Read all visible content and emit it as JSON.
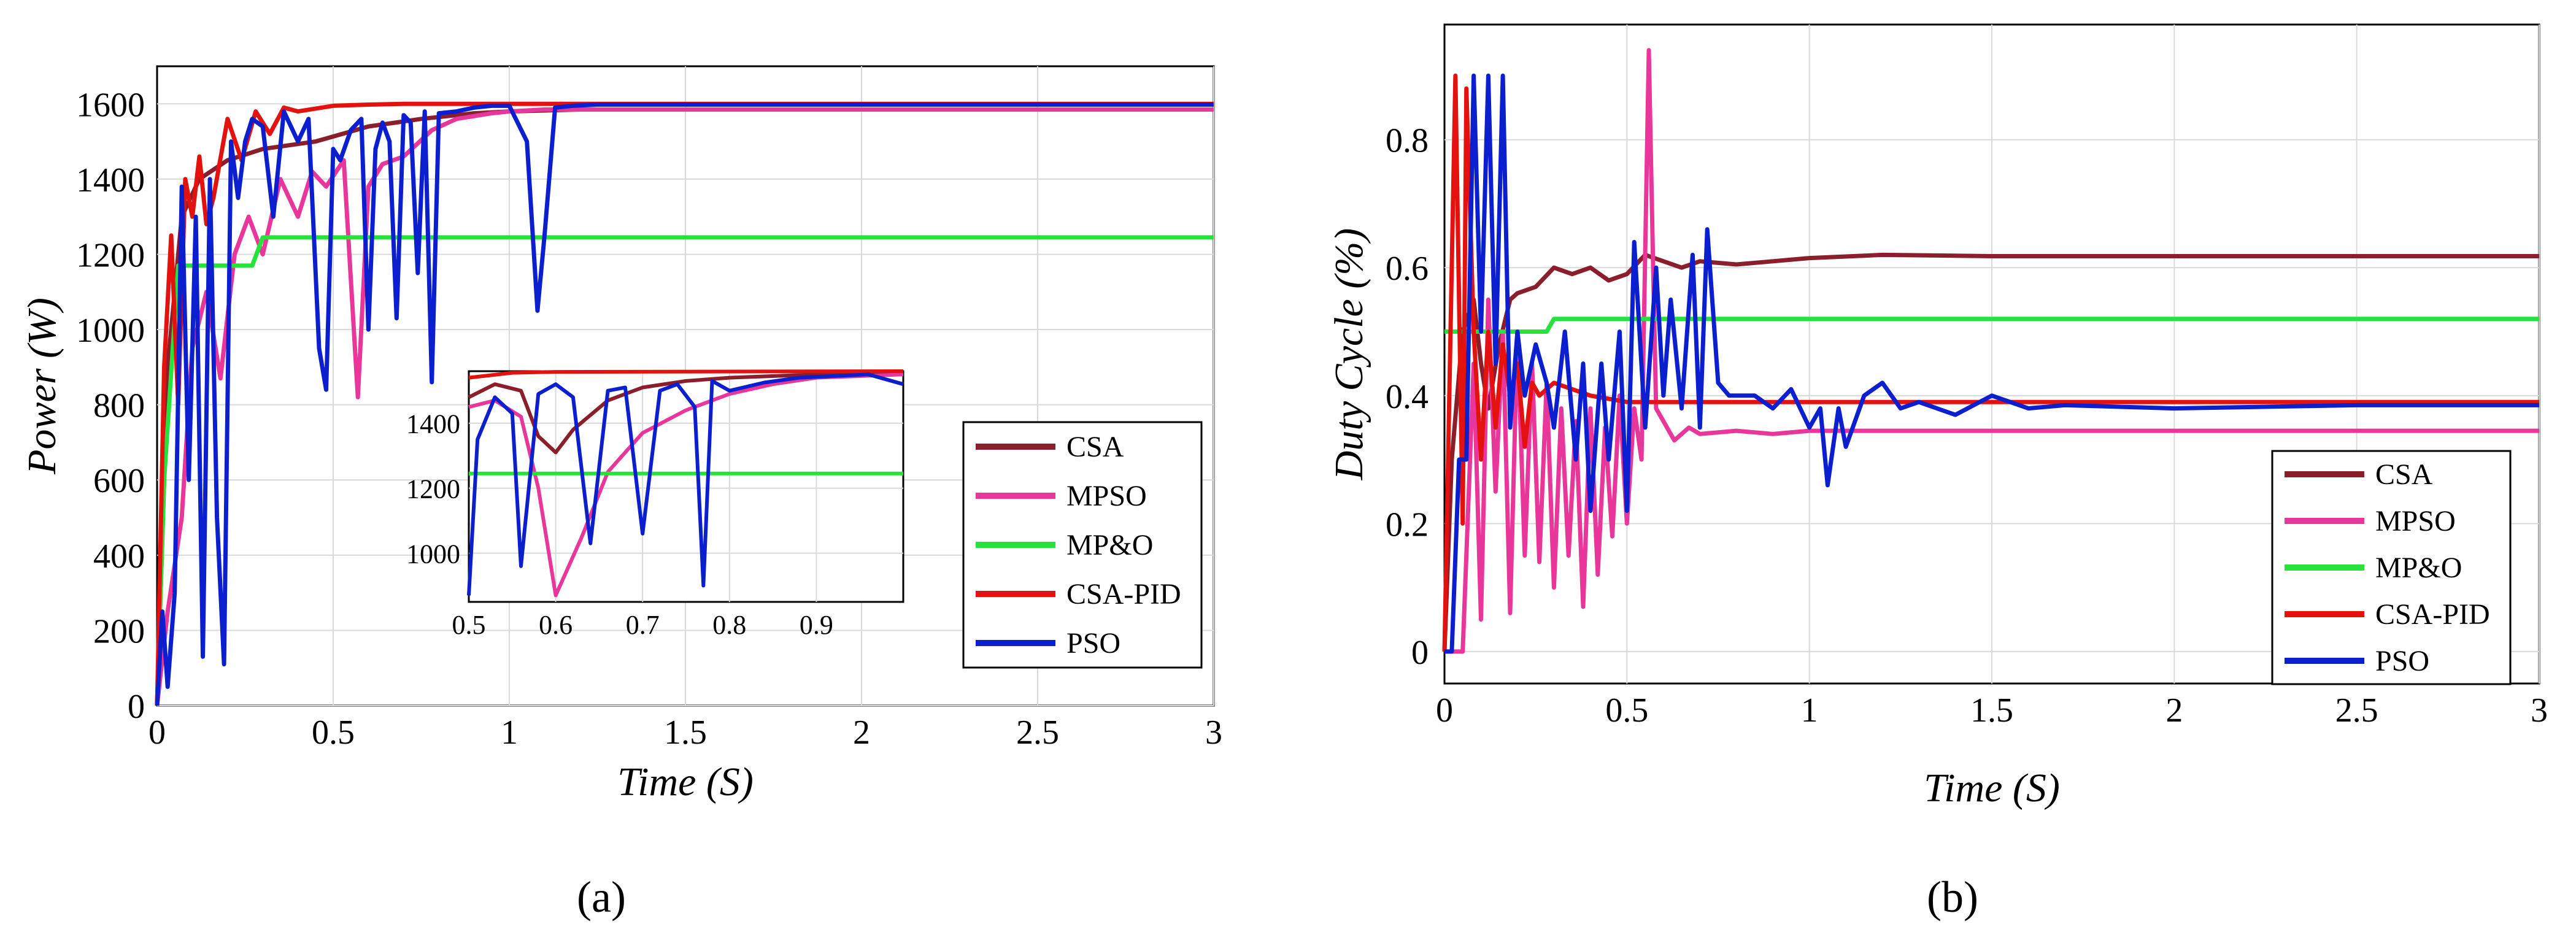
{
  "colors": {
    "CSA": "#8B1E2B",
    "MPSO": "#E8369A",
    "MP&O": "#27E23A",
    "CSA-PID": "#E3120F",
    "PSO": "#0B1FCF",
    "grid": "#d9d9d9",
    "axis": "#000000"
  },
  "chart_data": [
    {
      "id": "a",
      "type": "line",
      "caption": "(a)",
      "title": "",
      "xlabel": "Time (S)",
      "ylabel": "Power (W)",
      "xlim": [
        0,
        3
      ],
      "ylim": [
        0,
        1700
      ],
      "xticks": [
        0,
        0.5,
        1,
        1.5,
        2,
        2.5,
        3
      ],
      "xtick_labels": [
        "0",
        "0.5",
        "1",
        "1.5",
        "2",
        "2.5",
        "3"
      ],
      "yticks": [
        0,
        200,
        400,
        600,
        800,
        1000,
        1200,
        1400,
        1600
      ],
      "ytick_labels": [
        "0",
        "200",
        "400",
        "600",
        "800",
        "1000",
        "1200",
        "1400",
        "1600"
      ],
      "grid": true,
      "legend": {
        "position": "right",
        "entries": [
          "CSA",
          "MPSO",
          "MP&O",
          "CSA-PID",
          "PSO"
        ]
      },
      "series": [
        {
          "name": "CSA",
          "x": [
            0,
            0.03,
            0.07,
            0.12,
            0.2,
            0.3,
            0.45,
            0.6,
            0.75,
            0.85,
            0.9,
            1.0,
            1.2,
            3
          ],
          "y": [
            0,
            900,
            1300,
            1400,
            1450,
            1480,
            1500,
            1540,
            1560,
            1570,
            1575,
            1580,
            1585,
            1585
          ]
        },
        {
          "name": "MPSO",
          "x": [
            0,
            0.03,
            0.07,
            0.1,
            0.14,
            0.18,
            0.22,
            0.26,
            0.3,
            0.35,
            0.4,
            0.44,
            0.48,
            0.53,
            0.57,
            0.6,
            0.64,
            0.7,
            0.78,
            0.85,
            0.95,
            1.0,
            1.1,
            3
          ],
          "y": [
            0,
            250,
            500,
            950,
            1100,
            870,
            1200,
            1300,
            1200,
            1400,
            1300,
            1420,
            1380,
            1450,
            820,
            1380,
            1440,
            1460,
            1530,
            1560,
            1575,
            1580,
            1585,
            1585
          ]
        },
        {
          "name": "MP&O",
          "x": [
            0,
            0.02,
            0.06,
            0.1,
            0.15,
            0.2,
            0.27,
            0.3,
            0.33,
            3
          ],
          "y": [
            0,
            600,
            1170,
            1170,
            1170,
            1170,
            1170,
            1245,
            1245,
            1245
          ]
        },
        {
          "name": "CSA-PID",
          "x": [
            0,
            0.02,
            0.04,
            0.06,
            0.08,
            0.1,
            0.12,
            0.14,
            0.16,
            0.2,
            0.24,
            0.28,
            0.32,
            0.36,
            0.4,
            0.5,
            0.6,
            0.7,
            3
          ],
          "y": [
            0,
            900,
            1250,
            800,
            1400,
            1300,
            1460,
            1280,
            1350,
            1560,
            1450,
            1580,
            1520,
            1590,
            1580,
            1595,
            1598,
            1600,
            1600
          ]
        },
        {
          "name": "PSO",
          "x": [
            0,
            0.015,
            0.03,
            0.05,
            0.07,
            0.09,
            0.11,
            0.13,
            0.15,
            0.17,
            0.19,
            0.21,
            0.23,
            0.25,
            0.27,
            0.3,
            0.33,
            0.36,
            0.4,
            0.43,
            0.46,
            0.48,
            0.5,
            0.52,
            0.55,
            0.58,
            0.6,
            0.62,
            0.64,
            0.66,
            0.68,
            0.7,
            0.72,
            0.74,
            0.76,
            0.78,
            0.8,
            0.85,
            0.9,
            0.95,
            1.0,
            1.05,
            1.08,
            1.1,
            1.13,
            1.18,
            1.25,
            1.35,
            1.5,
            3
          ],
          "y": [
            0,
            250,
            50,
            300,
            1380,
            600,
            1300,
            130,
            1400,
            500,
            110,
            1500,
            1350,
            1500,
            1560,
            1540,
            1300,
            1580,
            1500,
            1560,
            950,
            840,
            1480,
            1450,
            1530,
            1560,
            1000,
            1480,
            1550,
            1500,
            1030,
            1570,
            1550,
            1150,
            1580,
            860,
            1575,
            1580,
            1590,
            1595,
            1595,
            1500,
            1050,
            1250,
            1590,
            1595,
            1598,
            1598,
            1598,
            1598
          ]
        }
      ],
      "inset": {
        "xlim": [
          0.5,
          1.0
        ],
        "ylim": [
          850,
          1560
        ],
        "xticks": [
          0.5,
          0.6,
          0.7,
          0.8,
          0.9
        ],
        "xtick_labels": [
          "0.5",
          "0.6",
          "0.7",
          "0.8",
          "0.9"
        ],
        "yticks": [
          1000,
          1200,
          1400
        ],
        "ytick_labels": [
          "1000",
          "1200",
          "1400"
        ],
        "grid": true,
        "series": [
          {
            "name": "CSA",
            "x": [
              0.5,
              0.53,
              0.56,
              0.58,
              0.6,
              0.62,
              0.66,
              0.7,
              0.75,
              0.8,
              0.9,
              1.0
            ],
            "y": [
              1480,
              1520,
              1500,
              1360,
              1310,
              1380,
              1470,
              1510,
              1530,
              1540,
              1550,
              1555
            ]
          },
          {
            "name": "MPSO",
            "x": [
              0.5,
              0.53,
              0.56,
              0.58,
              0.6,
              0.63,
              0.66,
              0.7,
              0.75,
              0.8,
              0.85,
              0.9,
              1.0
            ],
            "y": [
              1450,
              1470,
              1420,
              1200,
              870,
              1050,
              1250,
              1370,
              1440,
              1490,
              1520,
              1540,
              1550
            ]
          },
          {
            "name": "MP&O",
            "x": [
              0.5,
              1.0
            ],
            "y": [
              1245,
              1245
            ]
          },
          {
            "name": "CSA-PID",
            "x": [
              0.5,
              0.55,
              0.6,
              1.0
            ],
            "y": [
              1540,
              1555,
              1558,
              1560
            ]
          },
          {
            "name": "PSO",
            "x": [
              0.5,
              0.51,
              0.53,
              0.55,
              0.56,
              0.58,
              0.6,
              0.62,
              0.64,
              0.66,
              0.68,
              0.7,
              0.72,
              0.74,
              0.76,
              0.77,
              0.78,
              0.8,
              0.84,
              0.88,
              0.92,
              0.96,
              1.0
            ],
            "y": [
              870,
              1350,
              1480,
              1430,
              960,
              1490,
              1520,
              1480,
              1030,
              1500,
              1510,
              1060,
              1500,
              1520,
              1450,
              900,
              1530,
              1500,
              1525,
              1540,
              1545,
              1550,
              1520
            ]
          }
        ]
      }
    },
    {
      "id": "b",
      "type": "line",
      "caption": "(b)",
      "title": "",
      "xlabel": "Time (S)",
      "ylabel": "Duty Cycle (%)",
      "xlim": [
        0,
        3
      ],
      "ylim": [
        -0.05,
        0.98
      ],
      "xticks": [
        0,
        0.5,
        1,
        1.5,
        2,
        2.5,
        3
      ],
      "xtick_labels": [
        "0",
        "0.5",
        "1",
        "1.5",
        "2",
        "2.5",
        "3"
      ],
      "yticks": [
        0,
        0.2,
        0.4,
        0.6,
        0.8
      ],
      "ytick_labels": [
        "0",
        "0.2",
        "0.4",
        "0.6",
        "0.8"
      ],
      "grid": true,
      "legend": {
        "position": "bottom-right",
        "entries": [
          "CSA",
          "MPSO",
          "MP&O",
          "CSA-PID",
          "PSO"
        ]
      },
      "series": [
        {
          "name": "CSA",
          "x": [
            0,
            0.02,
            0.05,
            0.08,
            0.1,
            0.12,
            0.15,
            0.18,
            0.2,
            0.25,
            0.3,
            0.35,
            0.4,
            0.45,
            0.5,
            0.55,
            0.6,
            0.65,
            0.7,
            0.8,
            0.9,
            1.0,
            1.2,
            1.5,
            3
          ],
          "y": [
            0,
            0.3,
            0.5,
            0.55,
            0.45,
            0.38,
            0.48,
            0.55,
            0.56,
            0.57,
            0.6,
            0.59,
            0.6,
            0.58,
            0.59,
            0.62,
            0.61,
            0.6,
            0.61,
            0.605,
            0.61,
            0.615,
            0.62,
            0.618,
            0.618
          ]
        },
        {
          "name": "MPSO",
          "x": [
            0,
            0.05,
            0.08,
            0.1,
            0.12,
            0.14,
            0.16,
            0.18,
            0.2,
            0.22,
            0.24,
            0.26,
            0.28,
            0.3,
            0.32,
            0.34,
            0.36,
            0.38,
            0.4,
            0.42,
            0.44,
            0.46,
            0.48,
            0.5,
            0.52,
            0.54,
            0.56,
            0.57,
            0.58,
            0.6,
            0.63,
            0.67,
            0.7,
            0.8,
            0.9,
            1.0,
            1.2,
            1.5,
            3
          ],
          "y": [
            0,
            0,
            0.45,
            0.05,
            0.55,
            0.25,
            0.5,
            0.06,
            0.5,
            0.15,
            0.45,
            0.14,
            0.42,
            0.1,
            0.38,
            0.15,
            0.36,
            0.07,
            0.38,
            0.12,
            0.35,
            0.18,
            0.4,
            0.2,
            0.38,
            0.3,
            0.94,
            0.65,
            0.38,
            0.36,
            0.33,
            0.35,
            0.34,
            0.345,
            0.34,
            0.345,
            0.345,
            0.345,
            0.345
          ]
        },
        {
          "name": "MP&O",
          "x": [
            0,
            0.1,
            0.2,
            0.28,
            0.3,
            0.32,
            3
          ],
          "y": [
            0.5,
            0.5,
            0.5,
            0.5,
            0.52,
            0.52,
            0.52
          ]
        },
        {
          "name": "CSA-PID",
          "x": [
            0,
            0.01,
            0.03,
            0.05,
            0.06,
            0.08,
            0.1,
            0.12,
            0.14,
            0.16,
            0.18,
            0.2,
            0.22,
            0.24,
            0.26,
            0.3,
            0.35,
            0.4,
            0.45,
            0.5,
            0.6,
            0.7,
            0.8,
            1.0,
            3
          ],
          "y": [
            0,
            0.3,
            0.9,
            0.2,
            0.88,
            0.5,
            0.3,
            0.5,
            0.35,
            0.48,
            0.4,
            0.45,
            0.32,
            0.42,
            0.4,
            0.42,
            0.41,
            0.4,
            0.395,
            0.39,
            0.39,
            0.39,
            0.39,
            0.39,
            0.39
          ]
        },
        {
          "name": "PSO",
          "x": [
            0,
            0.02,
            0.04,
            0.06,
            0.08,
            0.1,
            0.12,
            0.14,
            0.16,
            0.18,
            0.2,
            0.22,
            0.25,
            0.28,
            0.3,
            0.33,
            0.36,
            0.38,
            0.4,
            0.43,
            0.45,
            0.48,
            0.5,
            0.52,
            0.55,
            0.58,
            0.6,
            0.62,
            0.65,
            0.68,
            0.7,
            0.72,
            0.75,
            0.78,
            0.8,
            0.85,
            0.9,
            0.95,
            1.0,
            1.03,
            1.05,
            1.08,
            1.1,
            1.15,
            1.2,
            1.25,
            1.3,
            1.4,
            1.5,
            1.6,
            1.7,
            2.0,
            2.5,
            3
          ],
          "y": [
            0,
            0,
            0.3,
            0.3,
            0.9,
            0.5,
            0.9,
            0.45,
            0.9,
            0.35,
            0.5,
            0.4,
            0.48,
            0.42,
            0.35,
            0.5,
            0.3,
            0.45,
            0.22,
            0.45,
            0.3,
            0.5,
            0.22,
            0.64,
            0.35,
            0.6,
            0.4,
            0.55,
            0.38,
            0.62,
            0.35,
            0.66,
            0.42,
            0.4,
            0.4,
            0.4,
            0.38,
            0.41,
            0.35,
            0.38,
            0.26,
            0.38,
            0.32,
            0.4,
            0.42,
            0.38,
            0.39,
            0.37,
            0.4,
            0.38,
            0.385,
            0.38,
            0.385,
            0.385
          ]
        }
      ]
    }
  ]
}
